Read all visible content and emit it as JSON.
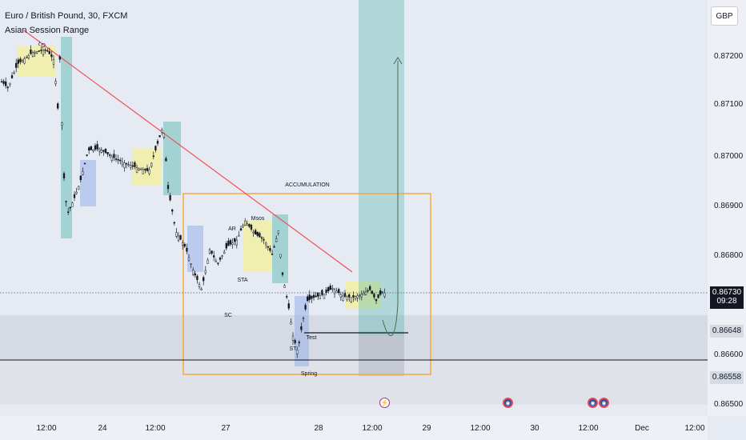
{
  "header": {
    "symbol_title": "Euro / British Pound, 30, FXCM",
    "indicator_name": "Asian Session Range"
  },
  "currency_button": "GBP",
  "y_axis_ticks": [
    "0.87200",
    "0.87100",
    "0.87000",
    "0.86900",
    "0.86800",
    "0.86600",
    "0.86500"
  ],
  "x_axis_ticks": [
    "12:00",
    "24",
    "12:00",
    "27",
    "28",
    "12:00",
    "29",
    "12:00",
    "30",
    "12:00",
    "Dec",
    "12:00"
  ],
  "price_labels": {
    "current_price": "0.86730",
    "countdown": "09:28",
    "level_upper": "0.86648",
    "level_lower": "0.86558"
  },
  "annotations": {
    "accumulation": "ACCUMULATION",
    "lq": "LQ",
    "ar": "AR",
    "msos": "Msos",
    "sta": "STA",
    "sc": "SC",
    "st": "ST",
    "test": "Test",
    "spring": "Spring"
  },
  "events": [
    {
      "icon": "flash-icon",
      "glyph": "⚡"
    },
    {
      "icon": "globe-icon",
      "glyph": "◉"
    },
    {
      "icon": "globe-icon",
      "glyph": "◉"
    },
    {
      "icon": "globe-icon",
      "glyph": "◉"
    }
  ],
  "colors": {
    "bull_zone": "#26a69a",
    "asian_range": "#f4f09a",
    "bear_zone": "#87a6e8",
    "trendline": "#f0505a",
    "accumulation_box": "#f5a742",
    "candles": "#131722"
  }
}
